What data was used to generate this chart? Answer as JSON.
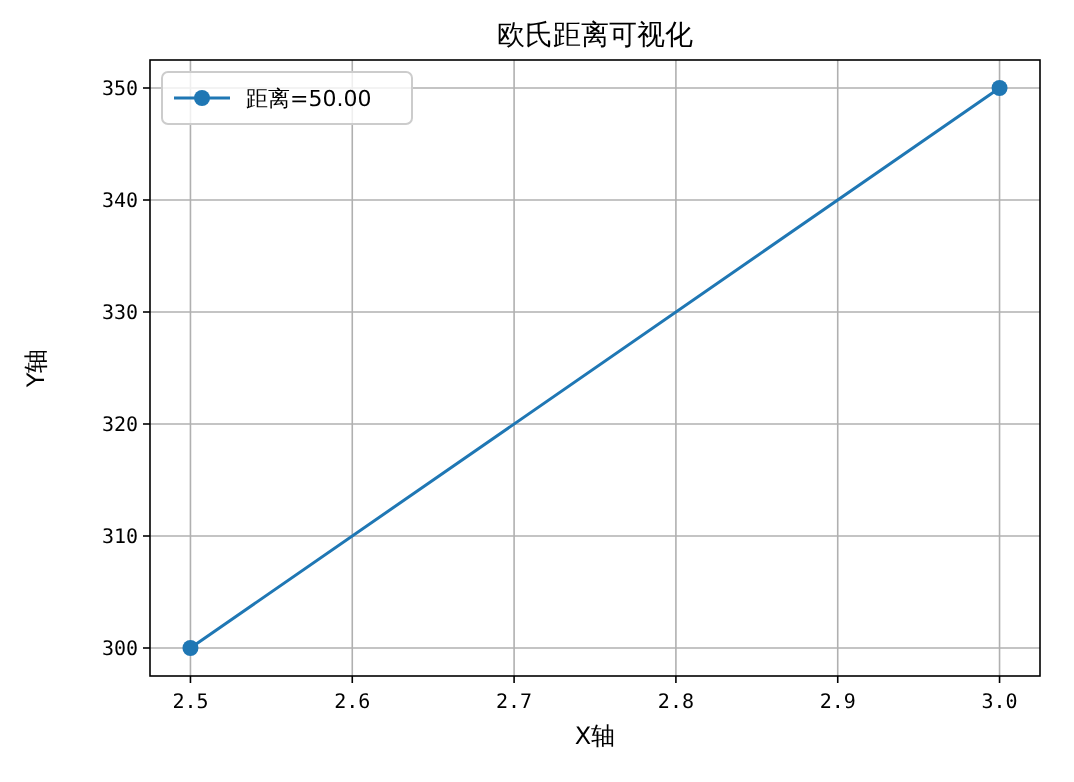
{
  "chart_data": {
    "type": "line",
    "title": "欧氏距离可视化",
    "xlabel": "X轴",
    "ylabel": "Y轴",
    "x": [
      2.5,
      3.0
    ],
    "series": [
      {
        "name": "距离=50.00",
        "color": "#1f77b4",
        "values": [
          300,
          350
        ]
      }
    ],
    "xlim": [
      2.475,
      3.025
    ],
    "ylim": [
      297.5,
      352.5
    ],
    "xticks": [
      2.5,
      2.6,
      2.7,
      2.8,
      2.9,
      {
        "value": 3.0,
        "label": "3.0"
      }
    ],
    "yticks": [
      300,
      310,
      320,
      330,
      340,
      350
    ],
    "grid": true,
    "legend": "top left",
    "marker": "circle",
    "line_style": "solid"
  }
}
